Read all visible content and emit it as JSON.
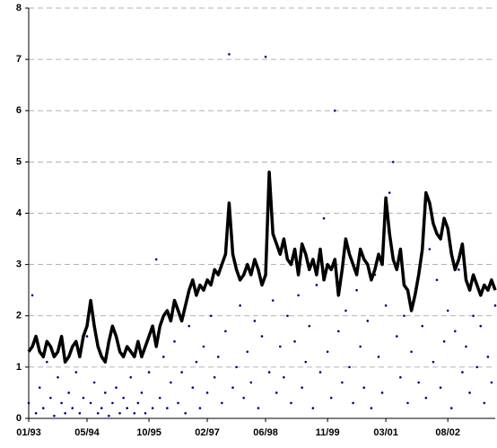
{
  "chart_data": {
    "type": "line-scatter",
    "x": [
      "1993-01",
      "1993-02",
      "1993-03",
      "1993-04",
      "1993-05",
      "1993-06",
      "1993-07",
      "1993-08",
      "1993-09",
      "1993-10",
      "1993-11",
      "1993-12",
      "1994-01",
      "1994-02",
      "1994-03",
      "1994-04",
      "1994-05",
      "1994-06",
      "1994-07",
      "1994-08",
      "1994-09",
      "1994-10",
      "1994-11",
      "1994-12",
      "1995-01",
      "1995-02",
      "1995-03",
      "1995-04",
      "1995-05",
      "1995-06",
      "1995-07",
      "1995-08",
      "1995-09",
      "1995-10",
      "1995-11",
      "1995-12",
      "1996-01",
      "1996-02",
      "1996-03",
      "1996-04",
      "1996-05",
      "1996-06",
      "1996-07",
      "1996-08",
      "1996-09",
      "1996-10",
      "1996-11",
      "1996-12",
      "1997-01",
      "1997-02",
      "1997-03",
      "1997-04",
      "1997-05",
      "1997-06",
      "1997-07",
      "1997-08",
      "1997-09",
      "1997-10",
      "1997-11",
      "1997-12",
      "1998-01",
      "1998-02",
      "1998-03",
      "1998-04",
      "1998-05",
      "1998-06",
      "1998-07",
      "1998-08",
      "1998-09",
      "1998-10",
      "1998-11",
      "1998-12",
      "1999-01",
      "1999-02",
      "1999-03",
      "1999-04",
      "1999-05",
      "1999-06",
      "1999-07",
      "1999-08",
      "1999-09",
      "1999-10",
      "1999-11",
      "1999-12",
      "2000-01",
      "2000-02",
      "2000-03",
      "2000-04",
      "2000-05",
      "2000-06",
      "2000-07",
      "2000-08",
      "2000-09",
      "2000-10",
      "2000-11",
      "2000-12",
      "2001-01",
      "2001-02",
      "2001-03",
      "2001-04",
      "2001-05",
      "2001-06",
      "2001-07",
      "2001-08",
      "2001-09",
      "2001-10",
      "2001-11",
      "2001-12",
      "2002-01",
      "2002-02",
      "2002-03",
      "2002-04",
      "2002-05",
      "2002-06",
      "2002-07",
      "2002-08",
      "2002-09",
      "2002-10",
      "2002-11",
      "2002-12",
      "2003-01",
      "2003-02",
      "2003-03",
      "2003-04",
      "2003-05",
      "2003-06",
      "2003-07",
      "2003-08",
      "2003-09"
    ],
    "series": [
      {
        "kind": "line",
        "color": "#000000",
        "values": [
          1.3,
          1.4,
          1.6,
          1.3,
          1.2,
          1.5,
          1.4,
          1.2,
          1.3,
          1.6,
          1.1,
          1.2,
          1.4,
          1.5,
          1.2,
          1.6,
          1.8,
          2.3,
          1.8,
          1.4,
          1.2,
          1.1,
          1.5,
          1.8,
          1.6,
          1.3,
          1.2,
          1.4,
          1.3,
          1.2,
          1.5,
          1.2,
          1.4,
          1.6,
          1.8,
          1.4,
          1.8,
          2.0,
          2.1,
          1.9,
          2.3,
          2.1,
          1.9,
          2.2,
          2.5,
          2.7,
          2.4,
          2.6,
          2.5,
          2.7,
          2.6,
          2.9,
          2.8,
          3.0,
          3.2,
          4.2,
          3.2,
          2.9,
          2.7,
          2.8,
          3.0,
          2.8,
          3.1,
          2.9,
          2.6,
          2.8,
          4.8,
          3.6,
          3.4,
          3.2,
          3.5,
          3.1,
          3.0,
          3.3,
          2.8,
          3.4,
          3.2,
          2.9,
          3.1,
          2.8,
          3.3,
          2.7,
          3.0,
          2.9,
          3.1,
          2.4,
          2.9,
          3.5,
          3.2,
          3.0,
          2.8,
          3.3,
          3.1,
          3.0,
          2.7,
          2.9,
          3.2,
          3.0,
          4.3,
          3.6,
          3.1,
          2.9,
          3.3,
          2.6,
          2.5,
          2.1,
          2.4,
          2.8,
          3.3,
          4.4,
          4.2,
          3.8,
          3.6,
          3.5,
          3.9,
          3.7,
          3.2,
          2.9,
          3.1,
          3.4,
          2.7,
          2.5,
          2.8,
          2.6,
          2.4,
          2.6,
          2.5,
          2.7,
          2.5
        ]
      },
      {
        "kind": "scatter",
        "color": "#000080",
        "values": [
          0.3,
          2.4,
          0.1,
          0.6,
          0.2,
          1.1,
          0.4,
          0.05,
          0.8,
          0.3,
          0.1,
          0.5,
          0.2,
          0.9,
          0.1,
          0.4,
          1.6,
          0.3,
          0.7,
          0.1,
          0.2,
          0.5,
          0.05,
          0.3,
          0.6,
          0.1,
          0.4,
          0.2,
          0.8,
          0.1,
          0.3,
          0.5,
          0.1,
          0.9,
          0.2,
          3.1,
          0.4,
          1.2,
          0.2,
          0.7,
          1.5,
          0.3,
          0.9,
          0.1,
          1.8,
          0.6,
          1.1,
          0.2,
          1.4,
          0.5,
          2.0,
          0.8,
          1.2,
          0.3,
          1.7,
          7.1,
          0.6,
          1.0,
          2.2,
          0.4,
          1.3,
          0.7,
          1.9,
          0.2,
          1.6,
          7.05,
          0.9,
          2.3,
          0.5,
          1.4,
          0.8,
          2.0,
          0.3,
          1.5,
          2.4,
          0.6,
          1.1,
          1.8,
          0.2,
          2.6,
          0.9,
          3.9,
          1.3,
          0.4,
          6.0,
          1.7,
          0.7,
          2.1,
          1.0,
          0.3,
          2.5,
          1.4,
          0.6,
          1.9,
          0.2,
          2.8,
          1.2,
          0.5,
          2.2,
          4.4,
          5.0,
          1.6,
          0.8,
          2.0,
          0.3,
          1.3,
          2.4,
          0.7,
          1.8,
          0.4,
          3.3,
          1.1,
          2.7,
          0.6,
          1.5,
          2.1,
          0.2,
          1.7,
          2.9,
          0.9,
          1.4,
          0.5,
          2.0,
          1.0,
          1.8,
          0.3,
          1.2,
          0.7,
          2.2
        ]
      }
    ],
    "xlim": [
      "1993-01",
      "2003-09"
    ],
    "xticks": [
      {
        "value": "1993-01",
        "label": "01/93"
      },
      {
        "value": "1994-05",
        "label": "05/94"
      },
      {
        "value": "1995-10",
        "label": "10/95"
      },
      {
        "value": "1997-02",
        "label": "02/97"
      },
      {
        "value": "1998-06",
        "label": "06/98"
      },
      {
        "value": "1999-11",
        "label": "11/99"
      },
      {
        "value": "2001-03",
        "label": "03/01"
      },
      {
        "value": "2002-08",
        "label": "08/02"
      }
    ],
    "ylim": [
      0,
      8
    ],
    "yticks": [
      0,
      1,
      2,
      3,
      4,
      5,
      6,
      7,
      8
    ],
    "grid": true
  }
}
